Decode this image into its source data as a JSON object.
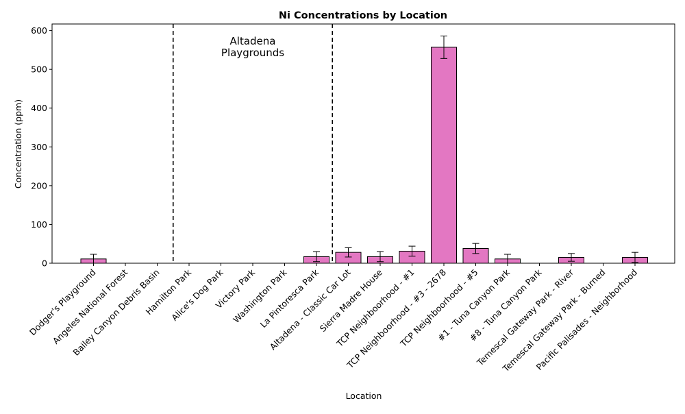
{
  "chart_data": {
    "type": "bar",
    "title": "Ni Concentrations by Location",
    "xlabel": "Location",
    "ylabel": "Concentration (ppm)",
    "ylim": [
      0,
      617
    ],
    "yticks": [
      0,
      100,
      200,
      300,
      400,
      500,
      600
    ],
    "grid": false,
    "bar_color": "#E377C2",
    "categories": [
      "Dodger's Playground",
      "Angeles National Forest",
      "Bailey Canyon Debris Basin",
      "Hamilton Park",
      "Alice's Dog Park",
      "Victory Park",
      "Washington Park",
      "La Pintoresca Park",
      "Altadena - Classic Car Lot",
      "Sierra Madre House",
      "TCP Neighboorhood - #1",
      "TCP Neighboorhood - #3 - 2678",
      "TCP Neighboorhood - #5",
      "#1 - Tuna Canyon Park",
      "#8 - Tuna Canyon Park",
      "Temescal Gateway Park - River",
      "Temescal Gateway Park - Burned",
      "Pacific Palisades - Neighborhood"
    ],
    "values": [
      11,
      null,
      null,
      null,
      null,
      null,
      null,
      17,
      28,
      17,
      31,
      557,
      38,
      11,
      null,
      15,
      null,
      15
    ],
    "errors": [
      12,
      null,
      null,
      null,
      null,
      null,
      null,
      13,
      12,
      13,
      13,
      29,
      13,
      12,
      null,
      10,
      null,
      13
    ],
    "annotations": [
      {
        "text": "Altadena\nPlaygrounds"
      }
    ],
    "group_divider_category_gaps": [
      2.5,
      7.5
    ]
  }
}
